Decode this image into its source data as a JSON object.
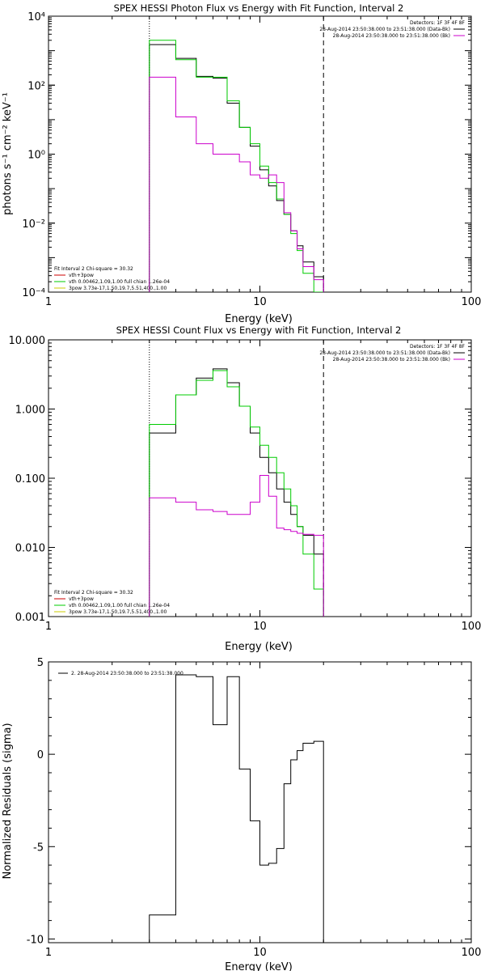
{
  "chart_data": [
    {
      "type": "line",
      "title": "SPEX HESSI Photon Flux vs Energy with Fit Function, Interval 2",
      "xlabel": "Energy (keV)",
      "ylabel": "photons s⁻¹ cm⁻² keV⁻¹",
      "x_scale": "log",
      "y_scale": "log",
      "xlim": [
        1,
        100
      ],
      "ylim": [
        0.0001,
        10000
      ],
      "x_ticks": [
        "1",
        "10",
        "100"
      ],
      "y_ticks": [
        "10⁻⁴",
        "10⁻²",
        "10⁰",
        "10²",
        "10⁴"
      ],
      "x_edges": [
        3,
        4,
        5,
        6,
        7,
        8,
        9,
        10,
        11,
        12,
        13,
        14,
        15,
        16,
        18,
        20
      ],
      "vlines": [
        {
          "x": 3,
          "style": "dotted"
        },
        {
          "x": 20,
          "style": "dashed"
        }
      ],
      "legend_top": {
        "detectors": "Detectors: 1F 3F 4F 8F",
        "entries": [
          {
            "name": "28-Aug-2014 23:50:38.000 to 23:51:38.000 (Data-Bk)",
            "color": "#000000"
          },
          {
            "name": "28-Aug-2014 23:50:38.000 to 23:51:38.000 (Bk)",
            "color": "#cc00cc"
          }
        ]
      },
      "legend_bottom": {
        "header": "Fit Interval 2   Chi-square = 30.32",
        "entries": [
          {
            "name": "vth+3pow",
            "color": "#cc0000"
          },
          {
            "name": "vth 0.00462,1.09,1.00  full chian 1.26e-04",
            "color": "#00cc00"
          },
          {
            "name": "3pow 3.73e-17,1.50,19.7,5.51,400.,1.00",
            "color": "#cccc00"
          }
        ]
      },
      "series": [
        {
          "color": "#000000",
          "values": [
            1500,
            600,
            180,
            160,
            30,
            6,
            1.7,
            0.35,
            0.12,
            0.045,
            0.018,
            0.006,
            0.0022,
            0.00075,
            0.00028
          ]
        },
        {
          "color": "#00cc00",
          "values": [
            2000,
            550,
            170,
            170,
            35,
            6,
            2,
            0.45,
            0.15,
            0.05,
            0.018,
            0.005,
            0.0016,
            0.00035,
            0.0001
          ]
        },
        {
          "color": "#cc00cc",
          "values": [
            170,
            12,
            2,
            1,
            1,
            0.6,
            0.25,
            0.2,
            0.25,
            0.15,
            0.02,
            0.006,
            0.0018,
            0.00055,
            0.00023
          ]
        }
      ]
    },
    {
      "type": "line",
      "title": "SPEX HESSI Count Flux vs Energy with Fit Function, Interval 2",
      "xlabel": "Energy (keV)",
      "ylabel": "",
      "x_scale": "log",
      "y_scale": "log",
      "xlim": [
        1,
        100
      ],
      "ylim": [
        0.001,
        10
      ],
      "x_ticks": [
        "1",
        "10",
        "100"
      ],
      "y_ticks": [
        "0.001",
        "0.010",
        "0.100",
        "1.000",
        "10.000"
      ],
      "x_edges": [
        3,
        4,
        5,
        6,
        7,
        8,
        9,
        10,
        11,
        12,
        13,
        14,
        15,
        16,
        18,
        20
      ],
      "vlines": [
        {
          "x": 3,
          "style": "dotted"
        },
        {
          "x": 20,
          "style": "dashed"
        }
      ],
      "legend_top": {
        "detectors": "Detectors: 1F 3F 4F 8F",
        "entries": [
          {
            "name": "28-Aug-2014 23:50:38.000 to 23:51:38.000 (Data-Bk)",
            "color": "#000000"
          },
          {
            "name": "28-Aug-2014 23:50:38.000 to 23:51:38.000 (Bk)",
            "color": "#cc00cc"
          }
        ]
      },
      "legend_bottom": {
        "header": "Fit Interval 2   Chi-square = 30.32",
        "entries": [
          {
            "name": "vth+3pow",
            "color": "#cc0000"
          },
          {
            "name": "vth 0.00462,1.09,1.00  full chian 1.26e-04",
            "color": "#00cc00"
          },
          {
            "name": "3pow 3.73e-17,1.50,19.7,5.51,400.,1.00",
            "color": "#cccc00"
          }
        ]
      },
      "series": [
        {
          "color": "#000000",
          "values": [
            0.45,
            1.6,
            2.8,
            3.8,
            2.4,
            1.1,
            0.45,
            0.2,
            0.12,
            0.07,
            0.045,
            0.03,
            0.02,
            0.015,
            0.008
          ]
        },
        {
          "color": "#00cc00",
          "values": [
            0.6,
            1.6,
            2.6,
            3.6,
            2.1,
            1.1,
            0.55,
            0.3,
            0.2,
            0.12,
            0.07,
            0.04,
            0.02,
            0.008,
            0.0025
          ]
        },
        {
          "color": "#cc00cc",
          "values": [
            0.052,
            0.045,
            0.035,
            0.033,
            0.03,
            0.03,
            0.045,
            0.11,
            0.055,
            0.019,
            0.018,
            0.017,
            0.016,
            0.0155,
            0.015
          ]
        }
      ]
    },
    {
      "type": "line",
      "title": "",
      "xlabel": "Energy (keV)",
      "ylabel": "Normalized Residuals (sigma)",
      "x_scale": "log",
      "y_scale": "linear",
      "xlim": [
        1,
        100
      ],
      "ylim": [
        -10.2,
        5
      ],
      "x_ticks": [
        "1",
        "10",
        "100"
      ],
      "y_ticks": [
        "5",
        "0",
        "-5",
        "-10"
      ],
      "y_tick_values": [
        5,
        0,
        -5,
        -10
      ],
      "x_edges": [
        3,
        4,
        5,
        6,
        7,
        8,
        9,
        10,
        11,
        12,
        13,
        14,
        15,
        16,
        18,
        20
      ],
      "legend_top": {
        "entries": [
          {
            "name": "2. 28-Aug-2014 23:50:38.000 to 23:51:38.000",
            "color": "#000000"
          }
        ]
      },
      "series": [
        {
          "color": "#000000",
          "values": [
            -8.7,
            4.3,
            4.2,
            1.6,
            4.2,
            -0.8,
            -3.6,
            -6.0,
            -5.9,
            -5.1,
            -1.6,
            -0.3,
            0.2,
            0.6,
            0.7
          ]
        }
      ]
    }
  ]
}
